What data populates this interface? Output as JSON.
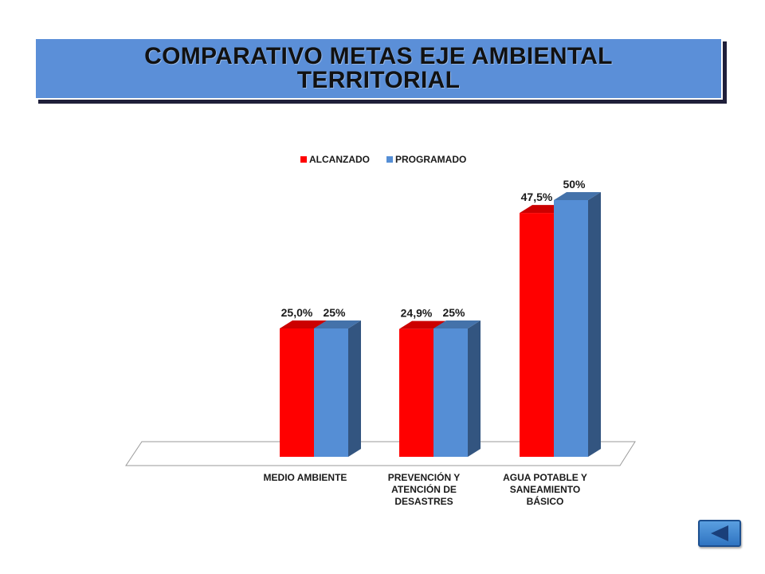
{
  "title": {
    "line1": "COMPARATIVO METAS EJE AMBIENTAL",
    "line2": "TERRITORIAL"
  },
  "colors": {
    "alcanzado": "#ff0000",
    "programado": "#558ed5",
    "title_bg": "#5b8fd8"
  },
  "nav": {
    "icon": "back-arrow-icon"
  },
  "chart_data": {
    "type": "bar",
    "style": "3d-clustered",
    "categories": [
      [
        "MEDIO AMBIENTE"
      ],
      [
        "PREVENCIÓN Y",
        "ATENCIÓN DE",
        "DESASTRES"
      ],
      [
        "AGUA POTABLE Y",
        "SANEAMIENTO",
        "BÁSICO"
      ]
    ],
    "series": [
      {
        "name": "ALCANZADO",
        "values": [
          25.0,
          24.9,
          47.5
        ],
        "labels": [
          "25,0%",
          "24,9%",
          "47,5%"
        ]
      },
      {
        "name": "PROGRAMADO",
        "values": [
          25,
          25,
          50
        ],
        "labels": [
          "25%",
          "25%",
          "50%"
        ]
      }
    ],
    "ylim": [
      0,
      50
    ],
    "legend_position": "top",
    "grid": false
  }
}
